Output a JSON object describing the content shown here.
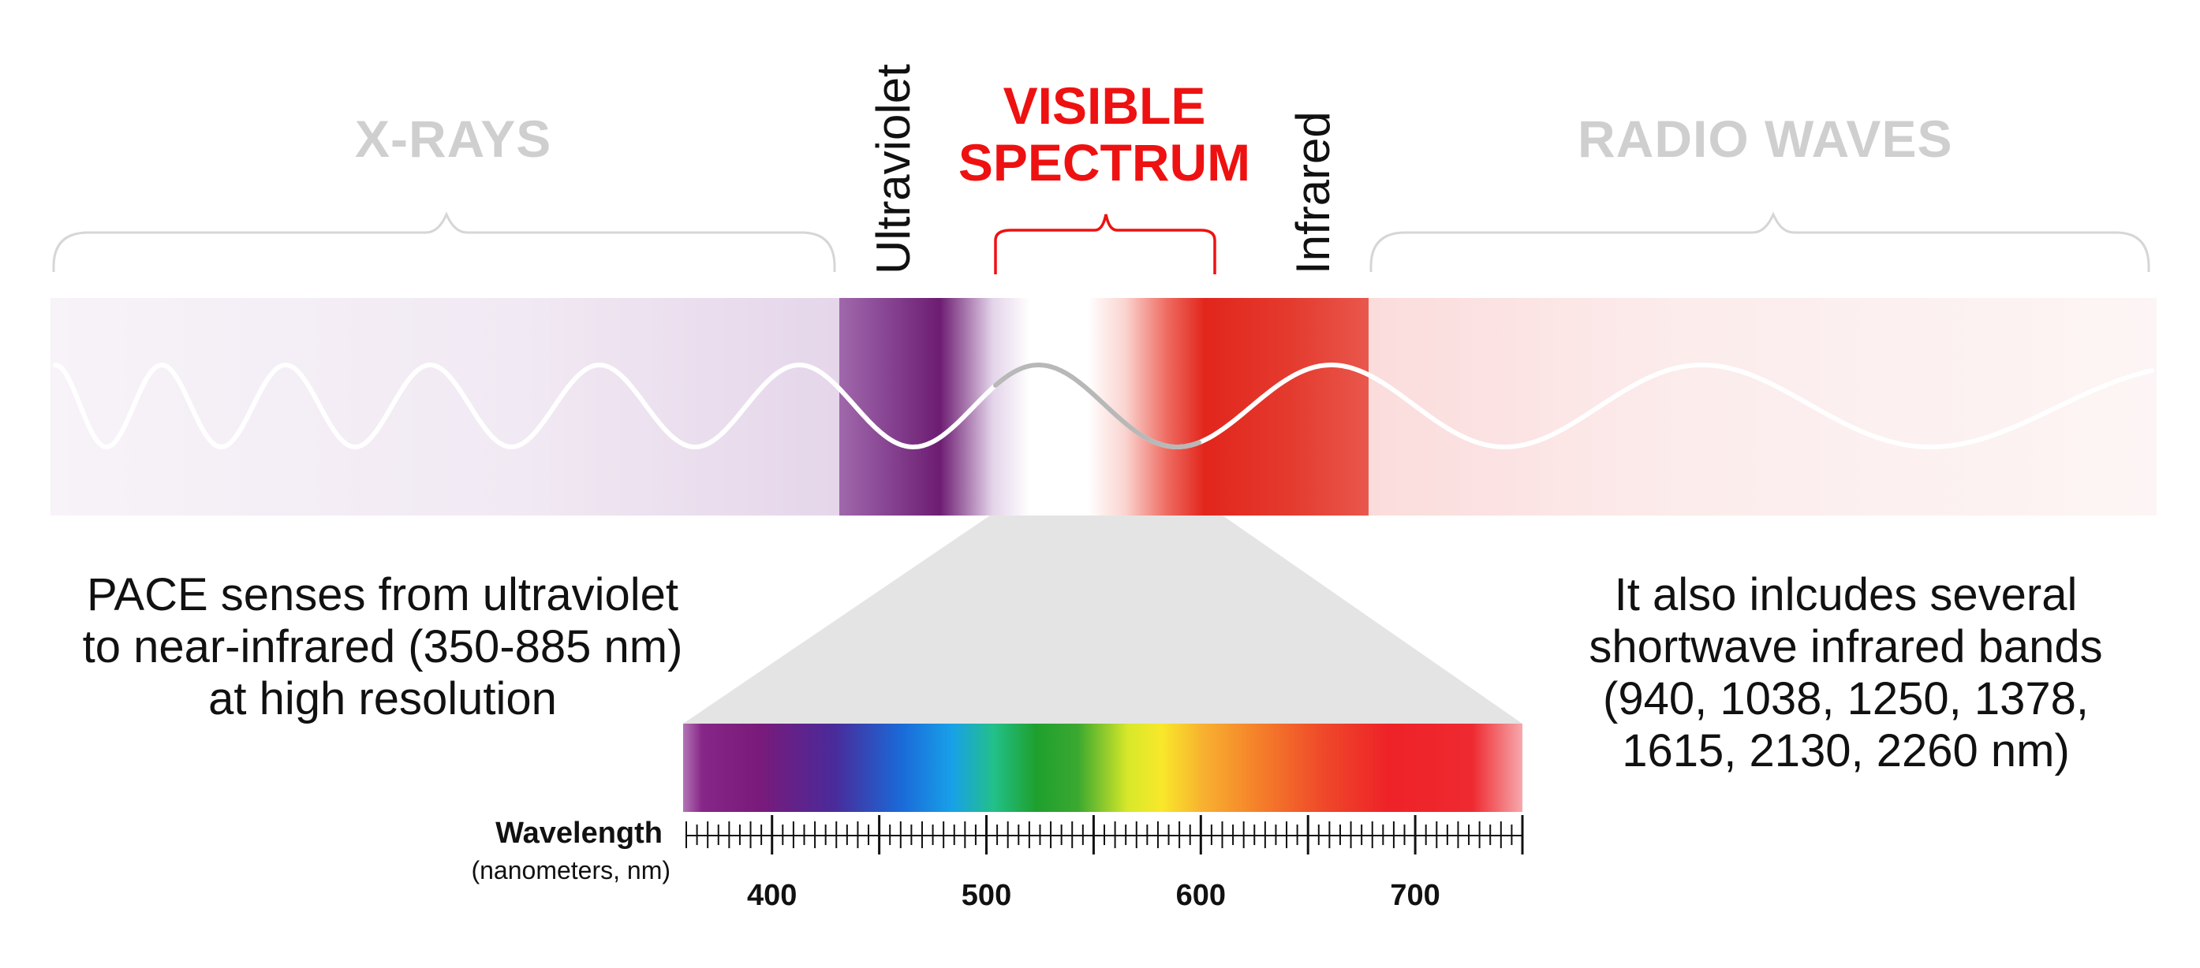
{
  "titles": {
    "xrays": "X-RAYS",
    "visible_line1": "VISIBLE",
    "visible_line2": "SPECTRUM",
    "radio": "RADIO WAVES",
    "ultraviolet": "Ultraviolet",
    "infrared": "Infrared"
  },
  "notes": {
    "left": "PACE senses from ultraviolet\nto near-infrared (350-885 nm)\nat high resolution",
    "right": "It also inlcudes several\nshortwave infrared bands\n(940, 1038, 1250, 1378,\n1615, 2130, 2260 nm)"
  },
  "axis": {
    "title": "Wavelength",
    "subtitle": "(nanometers, nm)",
    "min_nm": 360,
    "max_nm": 750,
    "ticks": [
      {
        "value": 400,
        "label": "400"
      },
      {
        "value": 500,
        "label": "500"
      },
      {
        "value": 600,
        "label": "600"
      },
      {
        "value": 700,
        "label": "700"
      }
    ]
  },
  "colors": {
    "accent_red": "#ee1111",
    "grey_title": "#cfcfcf",
    "uv_purple": "#7a2a80",
    "ir_red": "#e2261c",
    "zoom_grey": "#e4e4e4"
  }
}
